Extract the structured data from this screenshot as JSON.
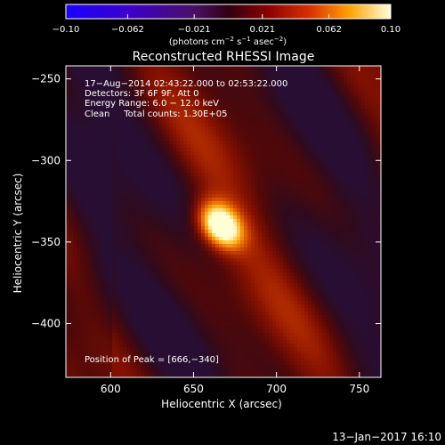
{
  "chart_data": {
    "type": "heatmap",
    "title": "Reconstructed RHESSI Image",
    "xlabel": "Heliocentric X (arcsec)",
    "ylabel": "Heliocentric Y (arcsec)",
    "xlim": [
      573,
      763
    ],
    "ylim": [
      -433,
      -242
    ],
    "xticks": [
      600,
      650,
      700,
      750
    ],
    "xtick_labels": [
      "600",
      "650",
      "700",
      "750"
    ],
    "yticks": [
      -250,
      -300,
      -350,
      -400
    ],
    "ytick_labels": [
      "−250",
      "−300",
      "−350",
      "−400"
    ],
    "colorbar": {
      "range": [
        -0.1,
        0.1
      ],
      "ticks": [
        -0.1,
        -0.062,
        -0.021,
        0.021,
        0.062,
        0.1
      ],
      "tick_labels": [
        "−0.10",
        "−0.062",
        "−0.021",
        "0.021",
        "0.062",
        "0.10"
      ],
      "unit_label_parts": {
        "open": "(photons cm",
        "exp1": "−2",
        "mid1": " s",
        "exp2": "−1",
        "mid2": " asec",
        "exp3": "−2",
        "close": ")"
      },
      "colormap": "RHESSI red-temperature"
    },
    "peak": {
      "x": 666,
      "y": -340,
      "label": "Position of Peak = [666,−340]"
    },
    "source_shape": {
      "x_sigma": 8,
      "y_sigma": 11,
      "tilt_deg": -40
    },
    "info_lines": [
      "17−Aug−2014 02:43:22.000 to 02:53:22.000",
      "Detectors: 3F 6F 9F, Att 0",
      "Energy Range: 6.0 − 12.0 keV",
      "Clean     Total counts: 1.30E+05"
    ],
    "timestamp": "13−Jan−2017 16:10"
  }
}
